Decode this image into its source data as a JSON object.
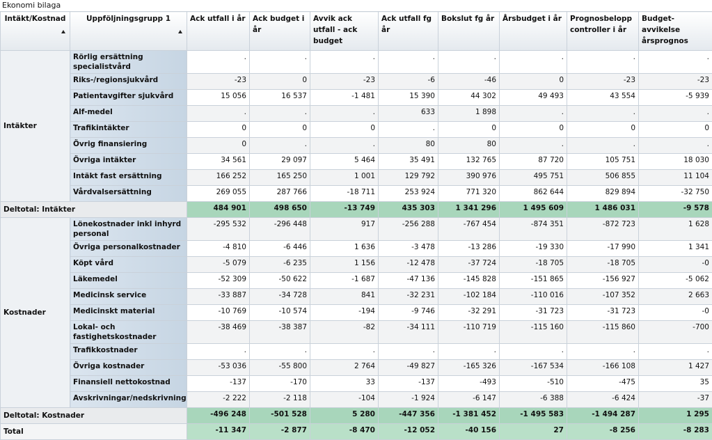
{
  "title": "Ekonomi bilaga",
  "columns": [
    "Intäkt/Kostnad",
    "Uppföljningsgrupp 1",
    "Ack utfall i år",
    "Ack budget i år",
    "Avvik ack utfall - ack budget",
    "Ack utfall fg år",
    "Bokslut fg år",
    "Årsbudget i år",
    "Prognosbelopp controller i år",
    "Budget-avvikelse årsprognos"
  ],
  "groups": [
    {
      "label": "Intäkter",
      "rows": [
        {
          "label": "Rörlig ersättning specialistvård",
          "values": [
            ".",
            ".",
            ".",
            ".",
            ".",
            ".",
            ".",
            "."
          ]
        },
        {
          "label": "Riks-/regionsjukvård",
          "values": [
            "-23",
            "0",
            "-23",
            "-6",
            "-46",
            "0",
            "-23",
            "-23"
          ]
        },
        {
          "label": "Patientavgifter sjukvård",
          "values": [
            "15 056",
            "16 537",
            "-1 481",
            "15 390",
            "44 302",
            "49 493",
            "43 554",
            "-5 939"
          ]
        },
        {
          "label": "Alf-medel",
          "values": [
            ".",
            ".",
            ".",
            "633",
            "1 898",
            ".",
            ".",
            "."
          ]
        },
        {
          "label": "Trafikintäkter",
          "values": [
            "0",
            "0",
            "0",
            ".",
            "0",
            "0",
            "0",
            "0"
          ]
        },
        {
          "label": "Övrig finansiering",
          "values": [
            "0",
            ".",
            ".",
            "80",
            "80",
            ".",
            ".",
            "."
          ]
        },
        {
          "label": "Övriga intäkter",
          "values": [
            "34 561",
            "29 097",
            "5 464",
            "35 491",
            "132 765",
            "87 720",
            "105 751",
            "18 030"
          ]
        },
        {
          "label": "Intäkt fast ersättning",
          "values": [
            "166 252",
            "165 250",
            "1 001",
            "129 792",
            "390 976",
            "495 751",
            "506 855",
            "11 104"
          ]
        },
        {
          "label": "Vårdvalsersättning",
          "values": [
            "269 055",
            "287 766",
            "-18 711",
            "253 924",
            "771 320",
            "862 644",
            "829 894",
            "-32 750"
          ]
        }
      ],
      "subtotal": {
        "label": "Deltotal: Intäkter",
        "values": [
          "484 901",
          "498 650",
          "-13 749",
          "435 303",
          "1 341 296",
          "1 495 609",
          "1 486 031",
          "-9 578"
        ]
      }
    },
    {
      "label": "Kostnader",
      "rows": [
        {
          "label": "Lönekostnader inkl inhyrd personal",
          "values": [
            "-295 532",
            "-296 448",
            "917",
            "-256 288",
            "-767 454",
            "-874 351",
            "-872 723",
            "1 628"
          ]
        },
        {
          "label": "Övriga personalkostnader",
          "values": [
            "-4 810",
            "-6 446",
            "1 636",
            "-3 478",
            "-13 286",
            "-19 330",
            "-17 990",
            "1 341"
          ]
        },
        {
          "label": "Köpt vård",
          "values": [
            "-5 079",
            "-6 235",
            "1 156",
            "-12 478",
            "-37 724",
            "-18 705",
            "-18 705",
            "-0"
          ]
        },
        {
          "label": "Läkemedel",
          "values": [
            "-52 309",
            "-50 622",
            "-1 687",
            "-47 136",
            "-145 828",
            "-151 865",
            "-156 927",
            "-5 062"
          ]
        },
        {
          "label": "Medicinsk service",
          "values": [
            "-33 887",
            "-34 728",
            "841",
            "-32 231",
            "-102 184",
            "-110 016",
            "-107 352",
            "2 663"
          ]
        },
        {
          "label": "Medicinskt material",
          "values": [
            "-10 769",
            "-10 574",
            "-194",
            "-9 746",
            "-32 291",
            "-31 723",
            "-31 723",
            "-0"
          ]
        },
        {
          "label": "Lokal- och fastighetskostnader",
          "values": [
            "-38 469",
            "-38 387",
            "-82",
            "-34 111",
            "-110 719",
            "-115 160",
            "-115 860",
            "-700"
          ]
        },
        {
          "label": "Trafikkostnader",
          "values": [
            ".",
            ".",
            ".",
            ".",
            ".",
            ".",
            ".",
            "."
          ]
        },
        {
          "label": "Övriga kostnader",
          "values": [
            "-53 036",
            "-55 800",
            "2 764",
            "-49 827",
            "-165 326",
            "-167 534",
            "-166 108",
            "1 427"
          ]
        },
        {
          "label": "Finansiell nettokostnad",
          "values": [
            "-137",
            "-170",
            "33",
            "-137",
            "-493",
            "-510",
            "-475",
            "35"
          ]
        },
        {
          "label": "Avskrivningar/nedskrivningar",
          "values": [
            "-2 222",
            "-2 118",
            "-104",
            "-1 924",
            "-6 147",
            "-6 388",
            "-6 424",
            "-37"
          ]
        }
      ],
      "subtotal": {
        "label": "Deltotal: Kostnader",
        "values": [
          "-496 248",
          "-501 528",
          "5 280",
          "-447 356",
          "-1 381 452",
          "-1 495 583",
          "-1 494 287",
          "1 295"
        ]
      }
    }
  ],
  "total": {
    "label": "Total",
    "values": [
      "-11 347",
      "-2 877",
      "-8 470",
      "-12 052",
      "-40 156",
      "27",
      "-8 256",
      "-8 283"
    ]
  }
}
